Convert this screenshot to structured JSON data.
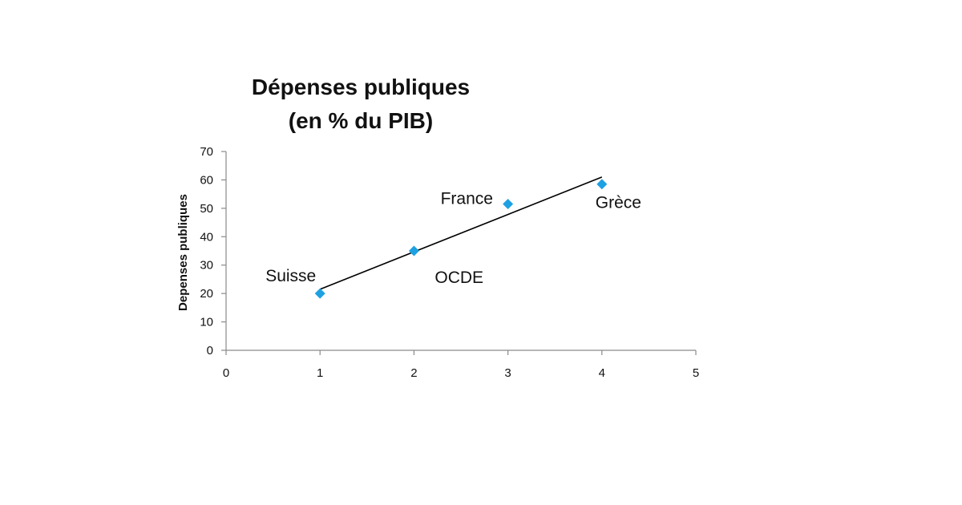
{
  "chart_data": {
    "type": "scatter",
    "title": [
      "Dépenses publiques",
      "(en % du PIB)"
    ],
    "xlabel": "",
    "ylabel": "Depenses publiques",
    "xlim": [
      0,
      5
    ],
    "ylim": [
      0,
      70
    ],
    "xticks": [
      0,
      1,
      2,
      3,
      4,
      5
    ],
    "yticks": [
      0,
      10,
      20,
      30,
      40,
      50,
      60,
      70
    ],
    "grid": false,
    "marker": "diamond",
    "marker_color": "#1da1e2",
    "trendline_color": "#000000",
    "points": [
      {
        "x": 1,
        "y": 20,
        "label": "Suisse"
      },
      {
        "x": 2,
        "y": 35,
        "label": "OCDE"
      },
      {
        "x": 3,
        "y": 51.5,
        "label": "France"
      },
      {
        "x": 4,
        "y": 58.5,
        "label": "Grèce"
      }
    ],
    "trendline": {
      "x": [
        1,
        4
      ],
      "y": [
        21.5,
        61
      ]
    }
  }
}
